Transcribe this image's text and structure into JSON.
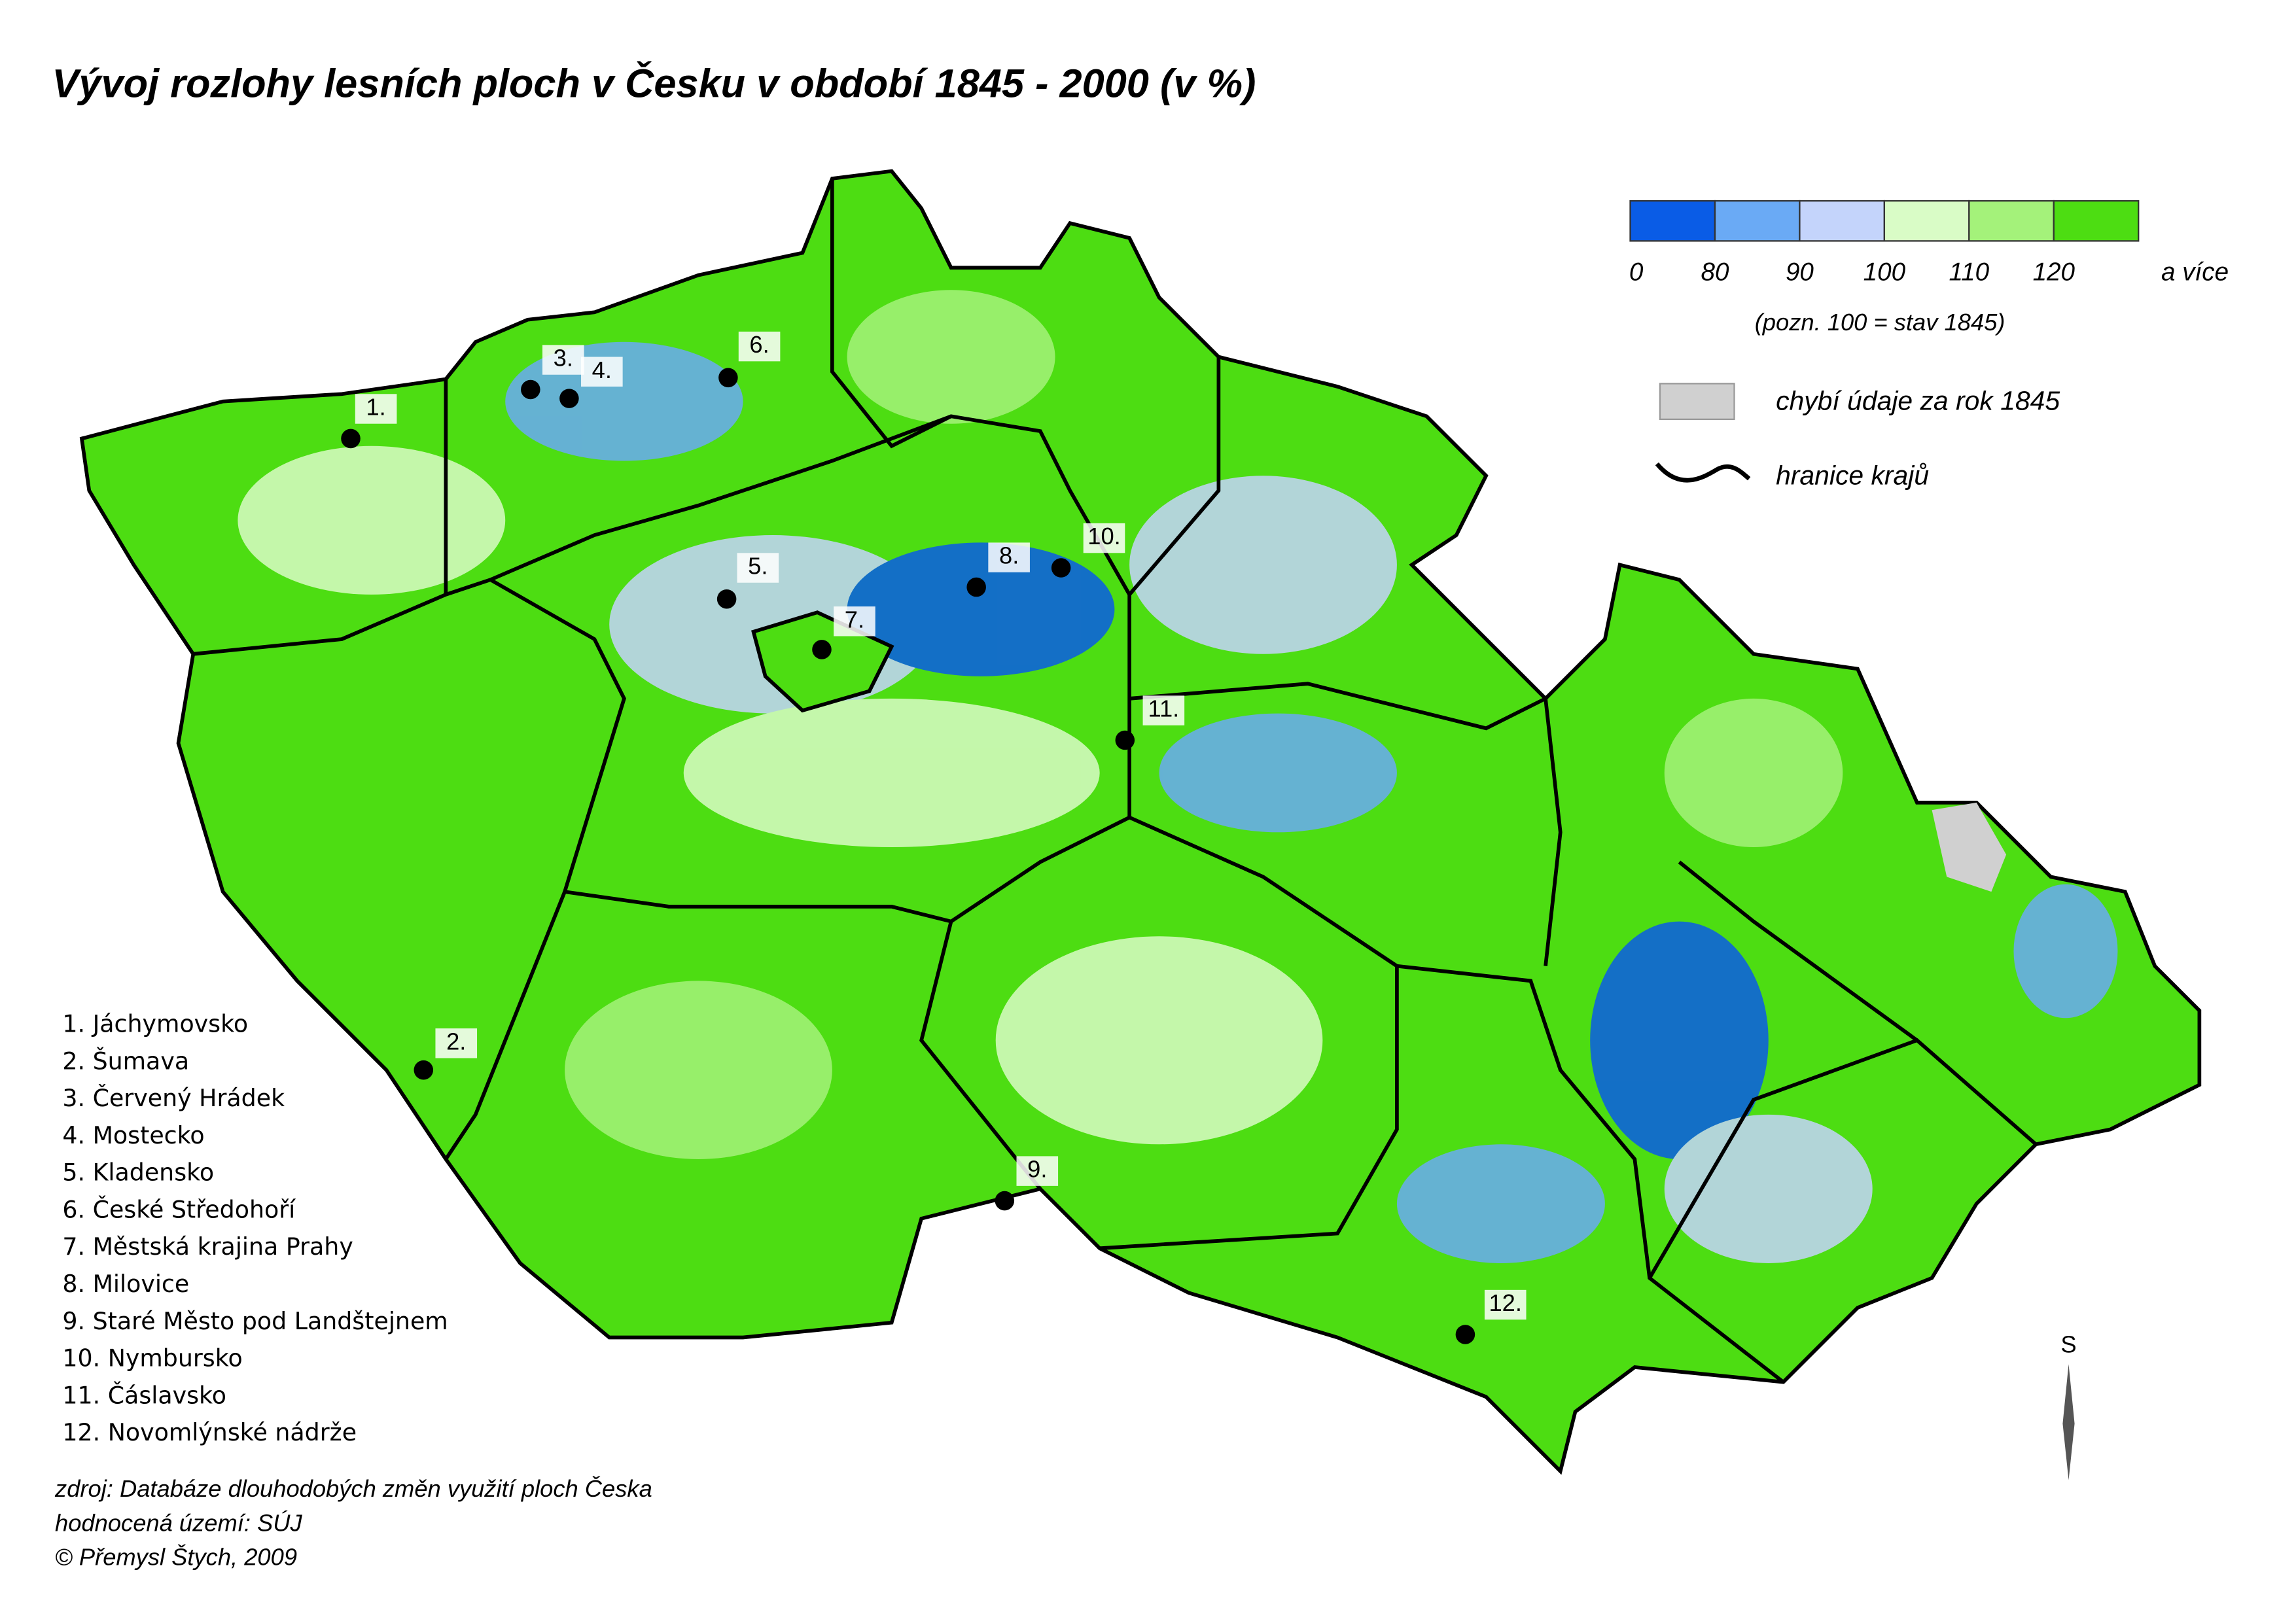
{
  "title": "Vývoj rozlohy lesních ploch v Česku v období 1845 - 2000 (v %)",
  "legend": {
    "colors": [
      "#0a5ce6",
      "#6aaaf5",
      "#c4d4fb",
      "#d9fcc6",
      "#a4f27a",
      "#4ddd12"
    ],
    "labels": [
      "0",
      "80",
      "90",
      "100",
      "110",
      "120",
      "a více"
    ],
    "note": "(pozn. 100 = stav 1845)",
    "missing_color": "#d0d0d0",
    "missing_label": "chybí údaje za rok 1845",
    "border_label": "hranice krajů"
  },
  "places": [
    {
      "number": "1.",
      "entry": "1. Jáchymovsko"
    },
    {
      "number": "2.",
      "entry": "2. Šumava"
    },
    {
      "number": "3.",
      "entry": "3. Červený Hrádek"
    },
    {
      "number": "4.",
      "entry": "4. Mostecko"
    },
    {
      "number": "5.",
      "entry": "5. Kladensko"
    },
    {
      "number": "6.",
      "entry": "6. České Středohoří"
    },
    {
      "number": "7.",
      "entry": "7. Městská krajina Prahy"
    },
    {
      "number": "8.",
      "entry": "8. Milovice"
    },
    {
      "number": "9.",
      "entry": "9. Staré Město pod Landštejnem"
    },
    {
      "number": "10.",
      "entry": "10. Nymbursko"
    },
    {
      "number": "11.",
      "entry": "11. Čáslavsko"
    },
    {
      "number": "12.",
      "entry": "12. Novomlýnské nádrže"
    }
  ],
  "source": [
    "zdroj: Databáze dlouhodobých změn využití ploch Česka",
    "hodnocená území: SÚJ",
    "© Přemysl Štych, 2009"
  ],
  "north": "S"
}
